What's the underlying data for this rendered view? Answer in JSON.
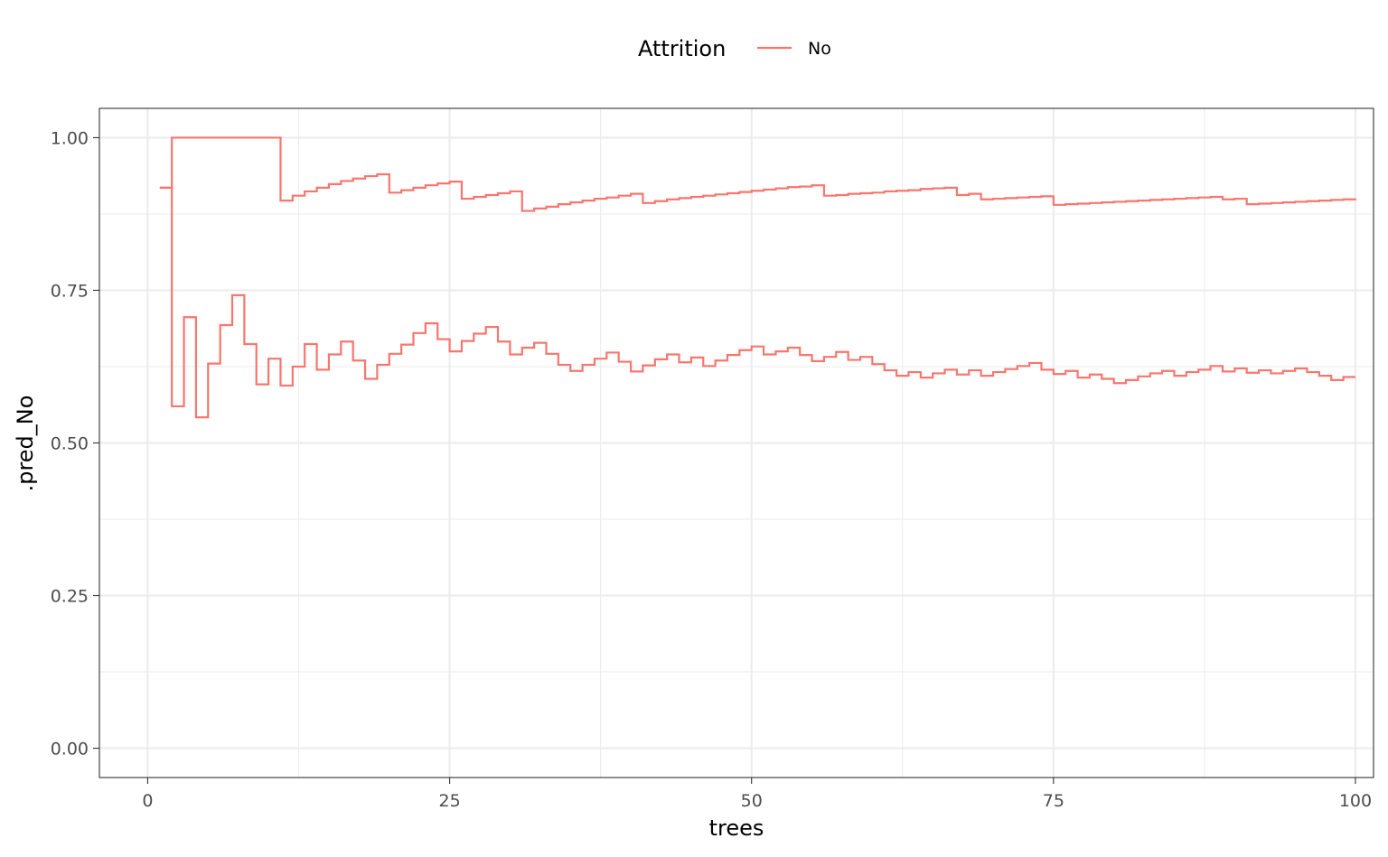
{
  "chart_data": {
    "type": "line",
    "step": true,
    "xlabel": "trees",
    "ylabel": ".pred_No",
    "xlim": [
      -4,
      101.5
    ],
    "ylim": [
      -0.048,
      1.048
    ],
    "x_ticks": [
      0,
      25,
      50,
      75,
      100
    ],
    "x_tick_labels": [
      "0",
      "25",
      "50",
      "75",
      "100"
    ],
    "y_ticks": [
      0,
      0.25,
      0.5,
      0.75,
      1.0
    ],
    "y_tick_labels": [
      "0.00",
      "0.25",
      "0.50",
      "0.75",
      "1.00"
    ],
    "grid": true,
    "legend": {
      "title": "Attrition",
      "position": "top",
      "labels": [
        "No"
      ]
    },
    "color": "#F8766D",
    "series": [
      {
        "name": "No",
        "x": [
          1,
          2,
          3,
          4,
          5,
          6,
          7,
          8,
          9,
          10,
          11,
          12,
          13,
          14,
          15,
          16,
          17,
          18,
          19,
          20,
          21,
          22,
          23,
          24,
          25,
          26,
          27,
          28,
          29,
          30,
          31,
          32,
          33,
          34,
          35,
          36,
          37,
          38,
          39,
          40,
          41,
          42,
          43,
          44,
          45,
          46,
          47,
          48,
          49,
          50,
          51,
          52,
          53,
          54,
          55,
          56,
          57,
          58,
          59,
          60,
          61,
          62,
          63,
          64,
          65,
          66,
          67,
          68,
          69,
          70,
          71,
          72,
          73,
          74,
          75,
          76,
          77,
          78,
          79,
          80,
          81,
          82,
          83,
          84,
          85,
          86,
          87,
          88,
          89,
          90,
          91,
          92,
          93,
          94,
          95,
          96,
          97,
          98,
          99,
          100
        ],
        "y": [
          0.918,
          1.0,
          1.0,
          1.0,
          1.0,
          1.0,
          1.0,
          1.0,
          1.0,
          1.0,
          0.897,
          0.905,
          0.912,
          0.918,
          0.924,
          0.929,
          0.933,
          0.937,
          0.94,
          0.91,
          0.914,
          0.918,
          0.922,
          0.925,
          0.928,
          0.9,
          0.903,
          0.906,
          0.909,
          0.912,
          0.88,
          0.884,
          0.887,
          0.891,
          0.894,
          0.897,
          0.9,
          0.902,
          0.905,
          0.908,
          0.893,
          0.896,
          0.899,
          0.901,
          0.903,
          0.905,
          0.907,
          0.909,
          0.911,
          0.913,
          0.915,
          0.917,
          0.919,
          0.92,
          0.922,
          0.905,
          0.906,
          0.908,
          0.909,
          0.91,
          0.912,
          0.913,
          0.914,
          0.916,
          0.917,
          0.918,
          0.906,
          0.908,
          0.899,
          0.9,
          0.901,
          0.902,
          0.903,
          0.904,
          0.89,
          0.891,
          0.892,
          0.893,
          0.894,
          0.895,
          0.896,
          0.897,
          0.898,
          0.899,
          0.9,
          0.901,
          0.902,
          0.903,
          0.899,
          0.9,
          0.891,
          0.892,
          0.893,
          0.894,
          0.895,
          0.896,
          0.897,
          0.898,
          0.899,
          0.9
        ]
      },
      {
        "name": "No",
        "x": [
          1,
          2,
          3,
          4,
          5,
          6,
          7,
          8,
          9,
          10,
          11,
          12,
          13,
          14,
          15,
          16,
          17,
          18,
          19,
          20,
          21,
          22,
          23,
          24,
          25,
          26,
          27,
          28,
          29,
          30,
          31,
          32,
          33,
          34,
          35,
          36,
          37,
          38,
          39,
          40,
          41,
          42,
          43,
          44,
          45,
          46,
          47,
          48,
          49,
          50,
          51,
          52,
          53,
          54,
          55,
          56,
          57,
          58,
          59,
          60,
          61,
          62,
          63,
          64,
          65,
          66,
          67,
          68,
          69,
          70,
          71,
          72,
          73,
          74,
          75,
          76,
          77,
          78,
          79,
          80,
          81,
          82,
          83,
          84,
          85,
          86,
          87,
          88,
          89,
          90,
          91,
          92,
          93,
          94,
          95,
          96,
          97,
          98,
          99,
          100
        ],
        "y": [
          0.918,
          0.56,
          0.706,
          0.542,
          0.63,
          0.693,
          0.742,
          0.662,
          0.596,
          0.638,
          0.594,
          0.625,
          0.662,
          0.62,
          0.645,
          0.666,
          0.635,
          0.605,
          0.628,
          0.646,
          0.661,
          0.68,
          0.696,
          0.67,
          0.65,
          0.667,
          0.679,
          0.69,
          0.666,
          0.645,
          0.656,
          0.664,
          0.646,
          0.628,
          0.618,
          0.628,
          0.638,
          0.648,
          0.633,
          0.617,
          0.627,
          0.637,
          0.645,
          0.632,
          0.64,
          0.626,
          0.635,
          0.644,
          0.652,
          0.658,
          0.645,
          0.65,
          0.656,
          0.644,
          0.634,
          0.641,
          0.649,
          0.636,
          0.641,
          0.629,
          0.619,
          0.61,
          0.616,
          0.607,
          0.614,
          0.62,
          0.612,
          0.619,
          0.61,
          0.616,
          0.621,
          0.626,
          0.631,
          0.62,
          0.613,
          0.618,
          0.607,
          0.612,
          0.605,
          0.598,
          0.603,
          0.609,
          0.614,
          0.618,
          0.61,
          0.616,
          0.62,
          0.626,
          0.617,
          0.622,
          0.615,
          0.619,
          0.614,
          0.618,
          0.622,
          0.616,
          0.61,
          0.603,
          0.608,
          0.608
        ]
      }
    ]
  }
}
